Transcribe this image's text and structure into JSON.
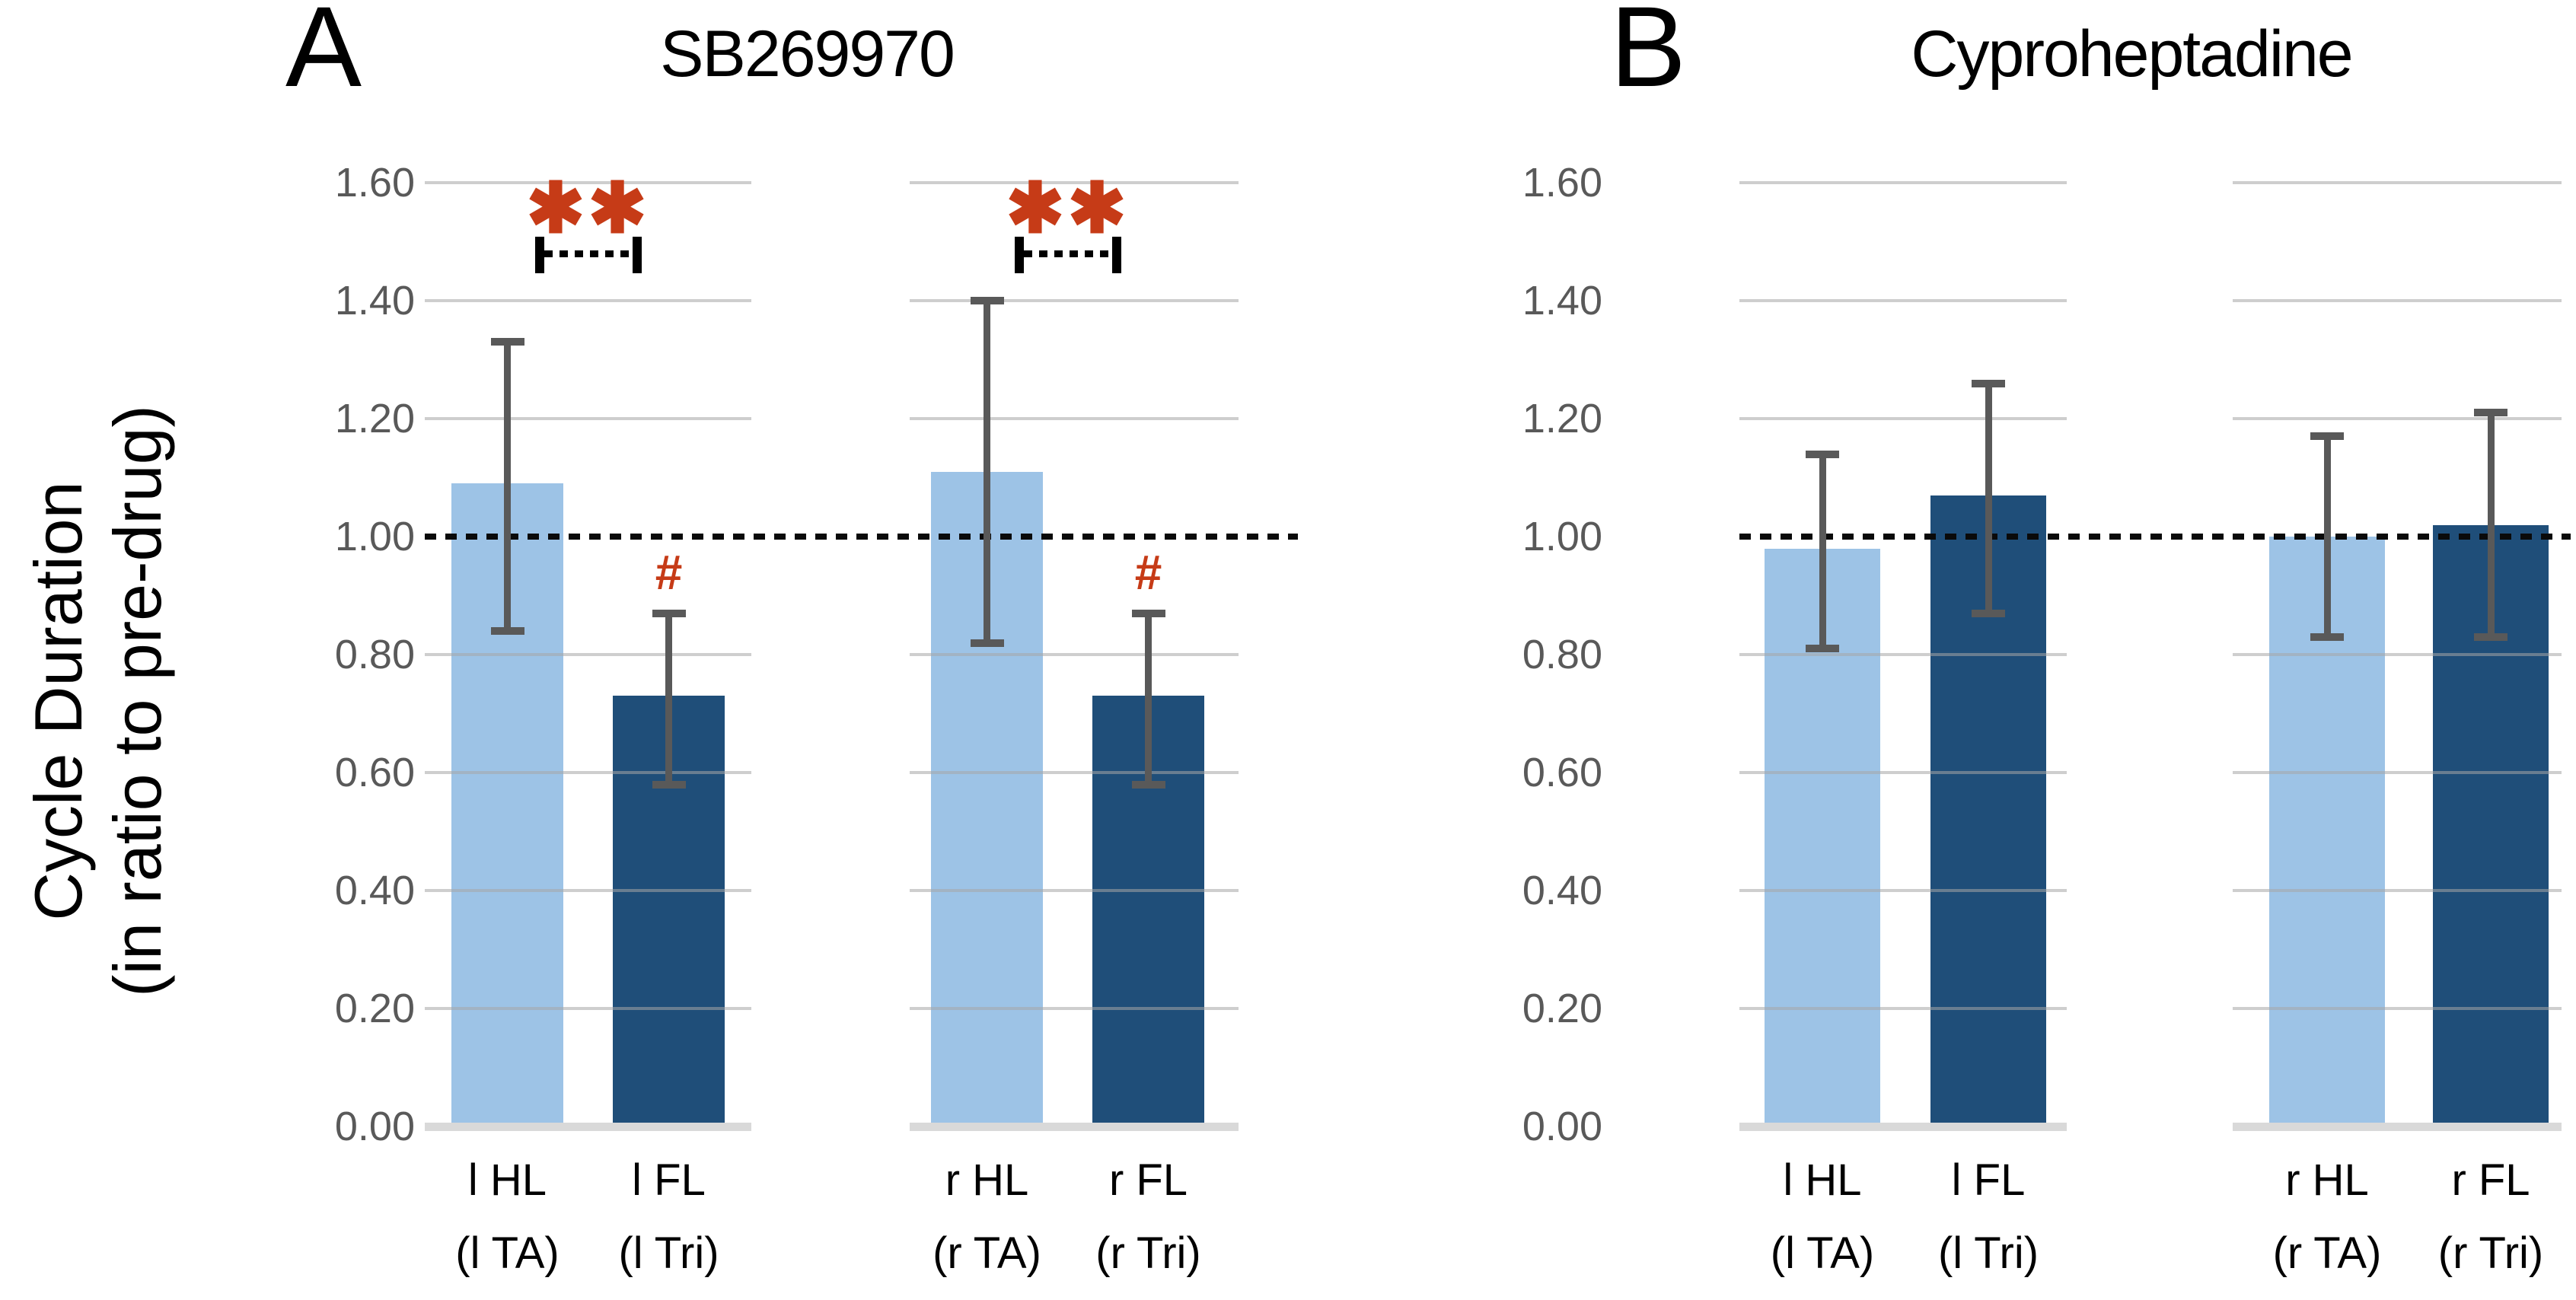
{
  "figure": {
    "y_axis_title_line1": "Cycle Duration",
    "y_axis_title_line2": "(in ratio to pre-drug)",
    "y_ticks": [
      "1.60",
      "1.40",
      "1.20",
      "1.00",
      "0.80",
      "0.60",
      "0.40",
      "0.20",
      "0.00"
    ],
    "colors": {
      "hindlimb_bar": "#9DC3E6",
      "forelimb_bar": "#1F4E79",
      "error_bar": "#595959",
      "significance": "#C63B17",
      "gridline": "#D9D9D9",
      "reference_line": "#0A0A0A",
      "tick_text": "#595959",
      "label_text": "#000000"
    }
  },
  "chart_data": [
    {
      "type": "bar",
      "panel_letter": "A",
      "title": "SB269970",
      "ylabel": "Cycle Duration (in ratio to pre-drug)",
      "ylim": [
        0.0,
        1.6
      ],
      "ytick_interval": 0.2,
      "reference_line": 1.0,
      "grid": true,
      "legend_position": "none",
      "groups": [
        {
          "significance": "**",
          "bars": [
            {
              "label_line1": "l HL",
              "label_line2": "(l TA)",
              "series": "hindlimb",
              "value": 1.09,
              "err_low": 0.84,
              "err_high": 1.33,
              "marker": ""
            },
            {
              "label_line1": "l FL",
              "label_line2": "(l Tri)",
              "series": "forelimb",
              "value": 0.73,
              "err_low": 0.58,
              "err_high": 0.87,
              "marker": "#"
            }
          ]
        },
        {
          "significance": "**",
          "bars": [
            {
              "label_line1": "r HL",
              "label_line2": "(r TA)",
              "series": "hindlimb",
              "value": 1.11,
              "err_low": 0.82,
              "err_high": 1.4,
              "marker": ""
            },
            {
              "label_line1": "r FL",
              "label_line2": "(r Tri)",
              "series": "forelimb",
              "value": 0.73,
              "err_low": 0.58,
              "err_high": 0.87,
              "marker": "#"
            }
          ]
        }
      ]
    },
    {
      "type": "bar",
      "panel_letter": "B",
      "title": "Cyproheptadine",
      "ylabel": "Cycle Duration (in ratio to pre-drug)",
      "ylim": [
        0.0,
        1.6
      ],
      "ytick_interval": 0.2,
      "reference_line": 1.0,
      "grid": true,
      "legend_position": "none",
      "groups": [
        {
          "significance": "",
          "bars": [
            {
              "label_line1": "l HL",
              "label_line2": "(l TA)",
              "series": "hindlimb",
              "value": 0.98,
              "err_low": 0.81,
              "err_high": 1.14,
              "marker": ""
            },
            {
              "label_line1": "l FL",
              "label_line2": "(l Tri)",
              "series": "forelimb",
              "value": 1.07,
              "err_low": 0.87,
              "err_high": 1.26,
              "marker": ""
            }
          ]
        },
        {
          "significance": "",
          "bars": [
            {
              "label_line1": "r HL",
              "label_line2": "(r TA)",
              "series": "hindlimb",
              "value": 1.0,
              "err_low": 0.83,
              "err_high": 1.17,
              "marker": ""
            },
            {
              "label_line1": "r FL",
              "label_line2": "(r Tri)",
              "series": "forelimb",
              "value": 1.02,
              "err_low": 0.83,
              "err_high": 1.21,
              "marker": ""
            }
          ]
        }
      ]
    }
  ]
}
